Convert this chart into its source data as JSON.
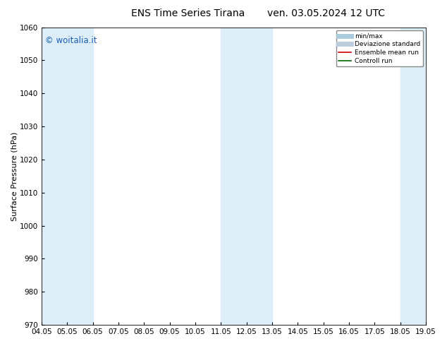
{
  "title_left": "ENS Time Series Tirana",
  "title_right": "ven. 03.05.2024 12 UTC",
  "ylabel": "Surface Pressure (hPa)",
  "ylim": [
    970,
    1060
  ],
  "yticks": [
    970,
    980,
    990,
    1000,
    1010,
    1020,
    1030,
    1040,
    1050,
    1060
  ],
  "xlim_start": 0,
  "xlim_end": 15,
  "xtick_labels": [
    "04.05",
    "05.05",
    "06.05",
    "07.05",
    "08.05",
    "09.05",
    "10.05",
    "11.05",
    "12.05",
    "13.05",
    "14.05",
    "15.05",
    "16.05",
    "17.05",
    "18.05",
    "19.05"
  ],
  "xtick_positions": [
    0,
    1,
    2,
    3,
    4,
    5,
    6,
    7,
    8,
    9,
    10,
    11,
    12,
    13,
    14,
    15
  ],
  "shaded_bands": [
    {
      "x_start": 0,
      "x_end": 2,
      "color": "#ddeef8"
    },
    {
      "x_start": 7,
      "x_end": 9,
      "color": "#ddeef8"
    },
    {
      "x_start": 14,
      "x_end": 15,
      "color": "#ddeef8"
    }
  ],
  "watermark": "© woitalia.it",
  "watermark_color": "#1a5fb4",
  "legend_items": [
    {
      "label": "min/max",
      "color": "#aaccdd",
      "lw": 5
    },
    {
      "label": "Deviazione standard",
      "color": "#bbccdd",
      "lw": 5
    },
    {
      "label": "Ensemble mean run",
      "color": "#cc0000",
      "lw": 1.2
    },
    {
      "label": "Controll run",
      "color": "#006600",
      "lw": 1.2
    }
  ],
  "bg_color": "#ffffff",
  "plot_bg_color": "#ffffff",
  "title_fontsize": 10,
  "ylabel_fontsize": 8,
  "tick_fontsize": 7.5
}
